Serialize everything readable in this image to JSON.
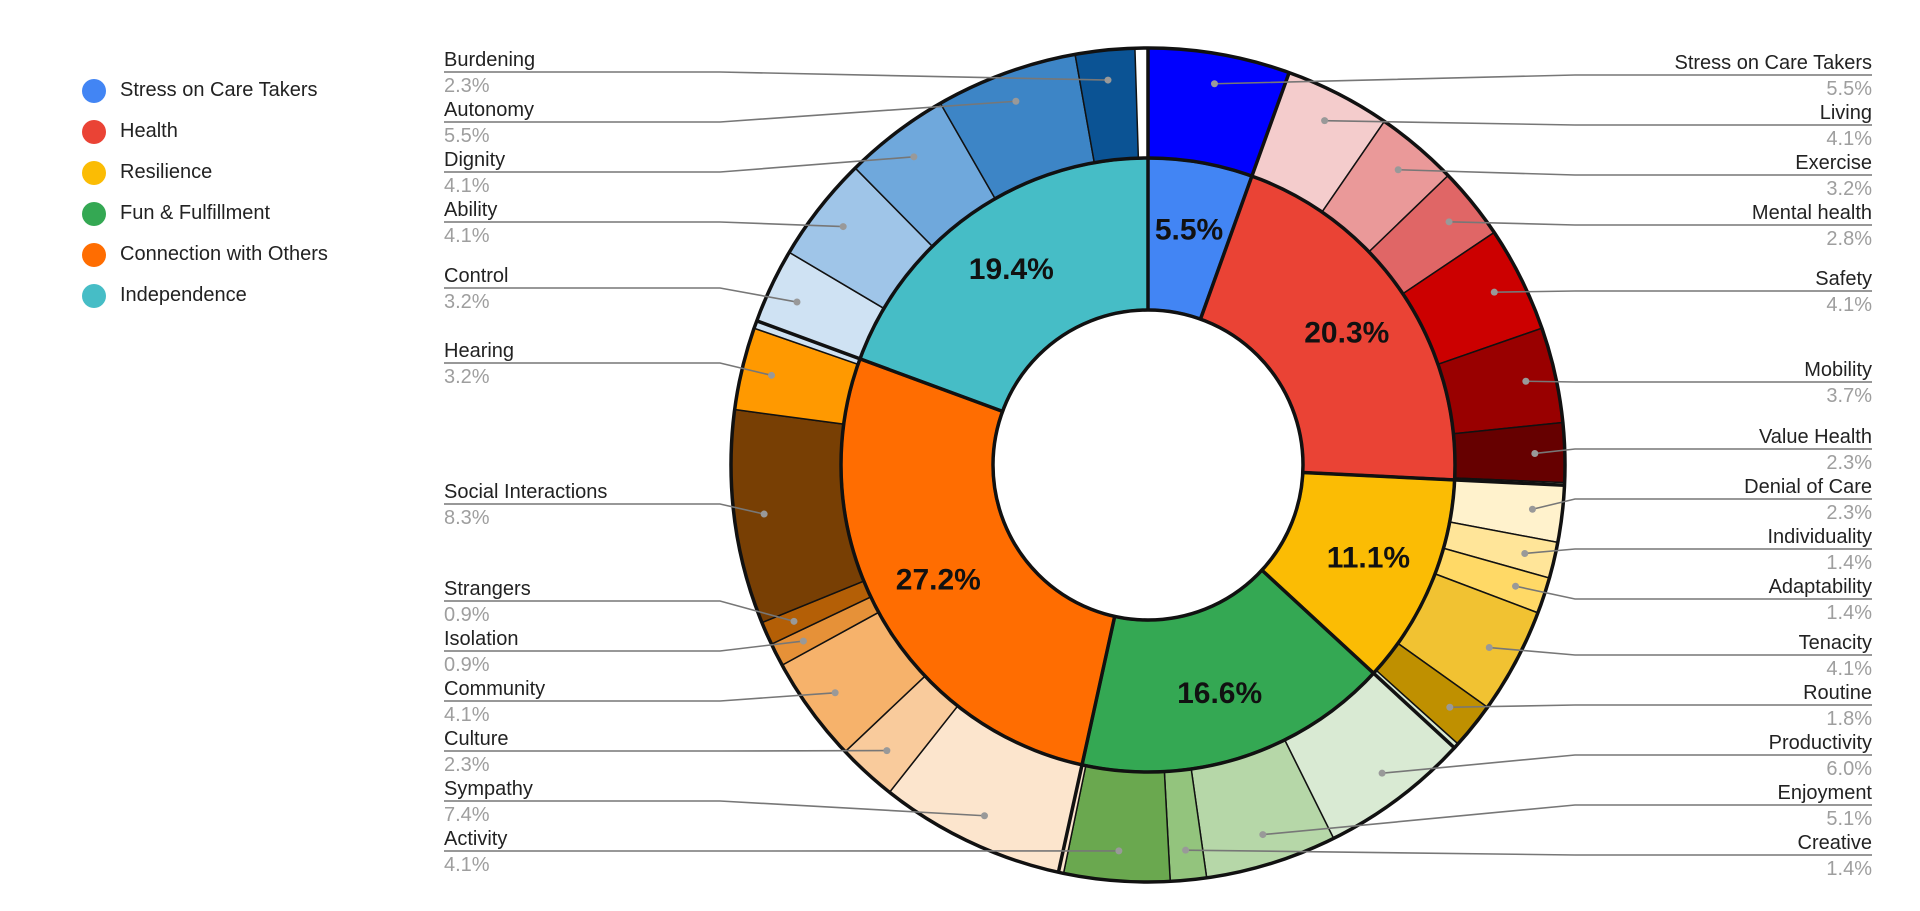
{
  "chart_data": {
    "type": "pie",
    "style": "nested donut",
    "legend": {
      "placement": "left",
      "items": [
        {
          "label": "Stress on Care Takers",
          "color": "#4285f4"
        },
        {
          "label": "Health",
          "color": "#ea4335"
        },
        {
          "label": "Resilience",
          "color": "#fbbc04"
        },
        {
          "label": "Fun & Fulfillment",
          "color": "#34a853"
        },
        {
          "label": "Connection with Others",
          "color": "#ff6d01"
        },
        {
          "label": "Independence",
          "color": "#46bdc6"
        }
      ]
    },
    "inner": [
      {
        "label": "Stress on Care Takers",
        "value": 5.5,
        "text": "5.5%",
        "color": "#4285f4"
      },
      {
        "label": "Health",
        "value": 20.3,
        "text": "20.3%",
        "color": "#ea4335"
      },
      {
        "label": "Resilience",
        "value": 11.1,
        "text": "11.1%",
        "color": "#fbbc04"
      },
      {
        "label": "Fun & Fulfillment",
        "value": 16.6,
        "text": "16.6%",
        "color": "#34a853"
      },
      {
        "label": "Connection with Others",
        "value": 27.2,
        "text": "27.2%",
        "color": "#ff6d01"
      },
      {
        "label": "Independence",
        "value": 19.4,
        "text": "19.4%",
        "color": "#46bdc6"
      }
    ],
    "outer": [
      {
        "label": "Stress on Care Takers",
        "value": 5.5,
        "text": "5.5%",
        "color": "#0000ff",
        "side": "right"
      },
      {
        "label": "Living",
        "value": 4.1,
        "text": "4.1%",
        "color": "#f4cccc",
        "side": "right"
      },
      {
        "label": "Exercise",
        "value": 3.2,
        "text": "3.2%",
        "color": "#ea9999",
        "side": "right"
      },
      {
        "label": "Mental health",
        "value": 2.8,
        "text": "2.8%",
        "color": "#e06666",
        "side": "right"
      },
      {
        "label": "Safety",
        "value": 4.1,
        "text": "4.1%",
        "color": "#cc0000",
        "side": "right"
      },
      {
        "label": "Mobility",
        "value": 3.7,
        "text": "3.7%",
        "color": "#990000",
        "side": "right"
      },
      {
        "label": "Value Health",
        "value": 2.3,
        "text": "2.3%",
        "color": "#660000",
        "side": "right"
      },
      {
        "label": "Denial of Care",
        "value": 2.3,
        "text": "2.3%",
        "color": "#fff2cc",
        "side": "right"
      },
      {
        "label": "Individuality",
        "value": 1.4,
        "text": "1.4%",
        "color": "#ffe599",
        "side": "right"
      },
      {
        "label": "Adaptability",
        "value": 1.4,
        "text": "1.4%",
        "color": "#ffd966",
        "side": "right"
      },
      {
        "label": "Tenacity",
        "value": 4.1,
        "text": "4.1%",
        "color": "#f1c232",
        "side": "right"
      },
      {
        "label": "Routine",
        "value": 1.8,
        "text": "1.8%",
        "color": "#bf9000",
        "side": "right"
      },
      {
        "label": "Productivity",
        "value": 6.0,
        "text": "6.0%",
        "color": "#d9ead3",
        "side": "right"
      },
      {
        "label": "Enjoyment",
        "value": 5.1,
        "text": "5.1%",
        "color": "#b6d7a8",
        "side": "right"
      },
      {
        "label": "Creative",
        "value": 1.4,
        "text": "1.4%",
        "color": "#93c47d",
        "side": "right"
      },
      {
        "label": "Activity",
        "value": 4.1,
        "text": "4.1%",
        "color": "#6aa84f",
        "side": "left"
      },
      {
        "label": "Sympathy",
        "value": 7.4,
        "text": "7.4%",
        "color": "#fce5cd",
        "side": "left"
      },
      {
        "label": "Culture",
        "value": 2.3,
        "text": "2.3%",
        "color": "#f9cb9c",
        "side": "left"
      },
      {
        "label": "Community",
        "value": 4.1,
        "text": "4.1%",
        "color": "#f6b26b",
        "side": "left"
      },
      {
        "label": "Isolation",
        "value": 0.9,
        "text": "0.9%",
        "color": "#e69138",
        "side": "left"
      },
      {
        "label": "Strangers",
        "value": 0.9,
        "text": "0.9%",
        "color": "#b45f06",
        "side": "left"
      },
      {
        "label": "Social Interactions",
        "value": 8.3,
        "text": "8.3%",
        "color": "#783f04",
        "side": "left"
      },
      {
        "label": "Hearing",
        "value": 3.2,
        "text": "3.2%",
        "color": "#ff9900",
        "side": "left"
      },
      {
        "label": "Control",
        "value": 3.2,
        "text": "3.2%",
        "color": "#cfe2f3",
        "side": "left"
      },
      {
        "label": "Ability",
        "value": 4.1,
        "text": "4.1%",
        "color": "#9fc5e8",
        "side": "left"
      },
      {
        "label": "Dignity",
        "value": 4.1,
        "text": "4.1%",
        "color": "#6fa8dc",
        "side": "left"
      },
      {
        "label": "Autonomy",
        "value": 5.5,
        "text": "5.5%",
        "color": "#3d85c6",
        "side": "left"
      },
      {
        "label": "Burdening",
        "value": 2.3,
        "text": "2.3%",
        "color": "#0b5394",
        "side": "left"
      }
    ]
  }
}
